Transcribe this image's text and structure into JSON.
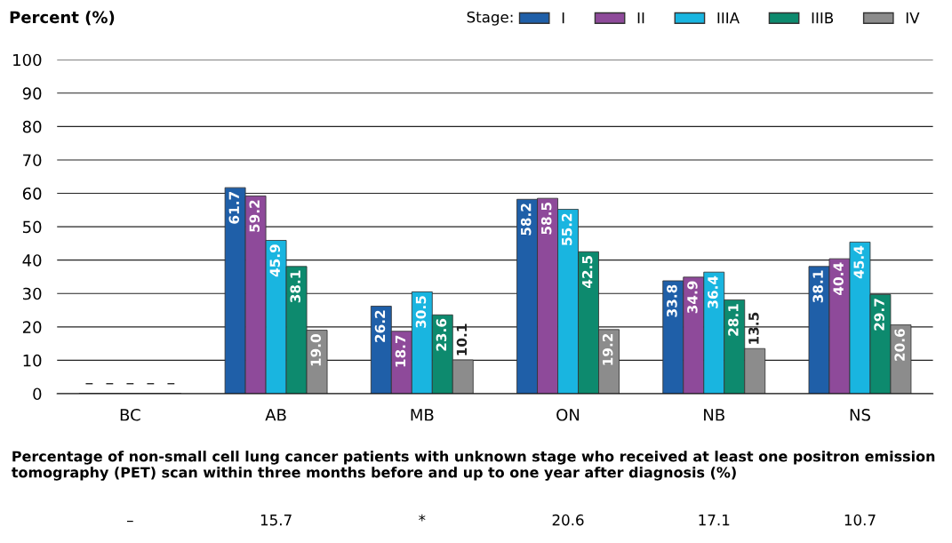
{
  "chart_data": {
    "type": "bar",
    "ylabel": "Percent (%)",
    "legend_title": "Stage:",
    "legend": "top right",
    "grid": "y",
    "categories": [
      "BC",
      "AB",
      "MB",
      "ON",
      "NB",
      "NS"
    ],
    "series": [
      {
        "name": "I",
        "color": "#1f5fa8",
        "values": [
          null,
          61.7,
          26.2,
          58.2,
          33.8,
          38.1
        ],
        "value_labels": [
          "–",
          "61.7",
          "26.2",
          "58.2",
          "33.8",
          "38.1"
        ]
      },
      {
        "name": "II",
        "color": "#8e4a9a",
        "values": [
          null,
          59.2,
          18.7,
          58.5,
          34.9,
          40.4
        ],
        "value_labels": [
          "–",
          "59.2",
          "18.7",
          "58.5",
          "34.9",
          "40.4"
        ]
      },
      {
        "name": "IIIA",
        "color": "#19b5e0",
        "values": [
          null,
          45.9,
          30.5,
          55.2,
          36.4,
          45.4
        ],
        "value_labels": [
          "–",
          "45.9",
          "30.5",
          "55.2",
          "36.4",
          "45.4"
        ]
      },
      {
        "name": "IIIB",
        "color": "#0d8a6e",
        "values": [
          null,
          38.1,
          23.6,
          42.5,
          28.1,
          29.7
        ],
        "value_labels": [
          "–",
          "38.1",
          "23.6",
          "42.5",
          "28.1",
          "29.7"
        ]
      },
      {
        "name": "IV",
        "color": "#8c8c8c",
        "values": [
          null,
          19.0,
          10.1,
          19.2,
          13.5,
          20.6
        ],
        "value_labels": [
          "–",
          "19.0",
          "10.1",
          "19.2",
          "13.5",
          "20.6"
        ]
      }
    ],
    "ylim": [
      0,
      100
    ],
    "yticks": [
      0,
      10,
      20,
      30,
      40,
      50,
      60,
      70,
      80,
      90,
      100
    ],
    "annotations": [
      "Percentage of non-small cell lung cancer patients with unknown stage who received at least one positron emission tomography (PET) scan within three months before and up to one year after diagnosis (%)",
      "–",
      "15.7",
      "*",
      "20.6",
      "17.1",
      "10.7"
    ]
  }
}
